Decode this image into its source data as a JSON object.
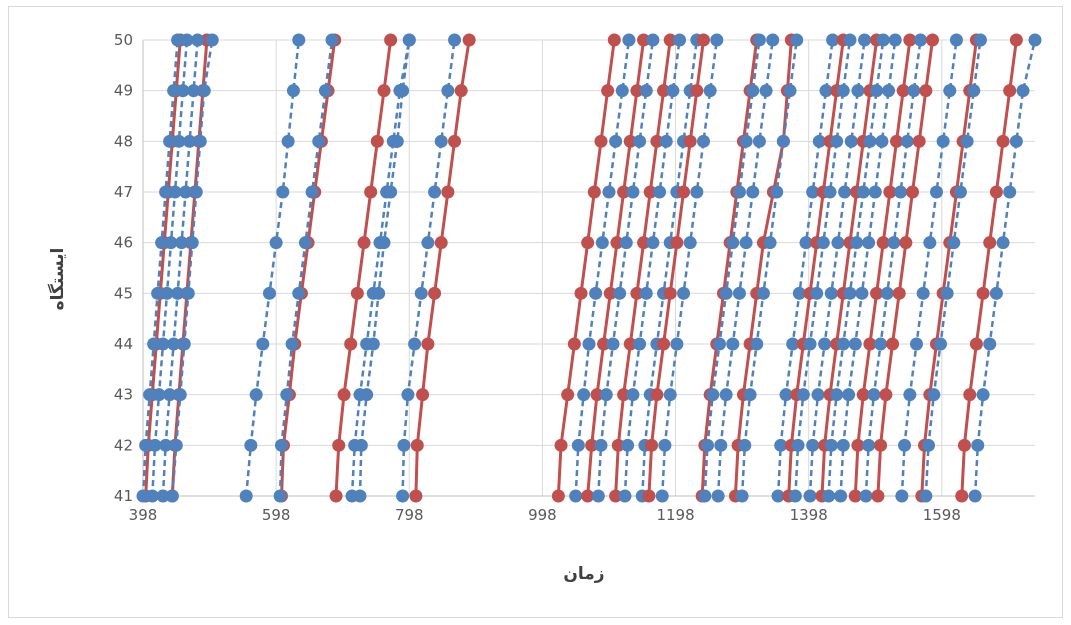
{
  "chart_data": {
    "type": "line",
    "xlabel": "زمان",
    "ylabel": "ایستگاه",
    "xlim": [
      398,
      1738
    ],
    "ylim": [
      41,
      50
    ],
    "xticks": [
      398,
      598,
      798,
      998,
      1198,
      1398,
      1598
    ],
    "yticks": [
      41,
      42,
      43,
      44,
      45,
      46,
      47,
      48,
      49,
      50
    ],
    "grid": true,
    "legend": "none",
    "colors": {
      "red": "#c0504d",
      "blue": "#4f81bd"
    },
    "series": [
      {
        "style": "solid",
        "color": "red",
        "x": [
          402,
          406,
          412,
          418,
          424,
          430,
          436,
          442,
          448,
          454
        ],
        "y": [
          41,
          42,
          43,
          44,
          45,
          46,
          47,
          48,
          49,
          50
        ]
      },
      {
        "style": "solid",
        "color": "red",
        "x": [
          442,
          446,
          452,
          458,
          464,
          470,
          476,
          482,
          488,
          494
        ],
        "y": [
          41,
          42,
          43,
          44,
          45,
          46,
          47,
          48,
          49,
          50
        ]
      },
      {
        "style": "dashed",
        "color": "blue",
        "x": [
          398,
          402,
          408,
          414,
          420,
          426,
          432,
          438,
          444,
          450
        ],
        "y": [
          41,
          42,
          43,
          44,
          45,
          46,
          47,
          48,
          49,
          50
        ]
      },
      {
        "style": "dashed",
        "color": "blue",
        "x": [
          412,
          416,
          422,
          428,
          434,
          440,
          446,
          452,
          458,
          464
        ],
        "y": [
          41,
          42,
          43,
          44,
          45,
          46,
          47,
          48,
          49,
          50
        ]
      },
      {
        "style": "dashed",
        "color": "blue",
        "x": [
          428,
          432,
          438,
          444,
          450,
          456,
          462,
          468,
          474,
          480
        ],
        "y": [
          41,
          42,
          43,
          44,
          45,
          46,
          47,
          48,
          49,
          50
        ]
      },
      {
        "style": "dashed",
        "color": "blue",
        "x": [
          442,
          448,
          454,
          460,
          466,
          472,
          478,
          484,
          490,
          502
        ],
        "y": [
          41,
          42,
          43,
          44,
          45,
          46,
          47,
          48,
          49,
          50
        ]
      },
      {
        "style": "dashed",
        "color": "blue",
        "x": [
          553,
          560,
          568,
          578,
          588,
          598,
          608,
          616,
          624,
          632
        ],
        "y": [
          41,
          42,
          43,
          44,
          45,
          46,
          47,
          48,
          49,
          50
        ]
      },
      {
        "style": "solid",
        "color": "red",
        "x": [
          606,
          609,
          618,
          626,
          636,
          646,
          656,
          666,
          676,
          686
        ],
        "y": [
          41,
          42,
          43,
          44,
          45,
          46,
          47,
          48,
          49,
          50
        ]
      },
      {
        "style": "dashed",
        "color": "blue",
        "x": [
          604,
          606,
          614,
          622,
          632,
          642,
          652,
          662,
          672,
          682
        ],
        "y": [
          41,
          42,
          43,
          44,
          45,
          46,
          47,
          48,
          49,
          50
        ]
      },
      {
        "style": "solid",
        "color": "red",
        "x": [
          688,
          692,
          700,
          710,
          720,
          730,
          740,
          750,
          760,
          770
        ],
        "y": [
          41,
          42,
          43,
          44,
          45,
          46,
          47,
          48,
          49,
          50
        ]
      },
      {
        "style": "dashed",
        "color": "blue",
        "x": [
          712,
          716,
          724,
          734,
          744,
          754,
          764,
          774,
          784,
          798
        ],
        "y": [
          41,
          42,
          43,
          44,
          45,
          46,
          47,
          48,
          49,
          50
        ]
      },
      {
        "style": "dashed",
        "color": "blue",
        "x": [
          724,
          726,
          734,
          744,
          752,
          760,
          770,
          780,
          788,
          798
        ],
        "y": [
          41,
          42,
          43,
          44,
          45,
          46,
          47,
          48,
          49,
          50
        ]
      },
      {
        "style": "solid",
        "color": "red",
        "x": [
          808,
          810,
          818,
          826,
          836,
          846,
          856,
          866,
          876,
          888
        ],
        "y": [
          41,
          42,
          43,
          44,
          45,
          46,
          47,
          48,
          49,
          50
        ]
      },
      {
        "style": "dashed",
        "color": "blue",
        "x": [
          788,
          790,
          796,
          806,
          816,
          826,
          836,
          846,
          856,
          866
        ],
        "y": [
          41,
          42,
          43,
          44,
          45,
          46,
          47,
          48,
          49,
          50
        ]
      },
      {
        "style": "solid",
        "color": "red",
        "x": [
          1022,
          1026,
          1036,
          1046,
          1056,
          1066,
          1076,
          1086,
          1096,
          1106
        ],
        "y": [
          41,
          42,
          43,
          44,
          45,
          46,
          47,
          48,
          49,
          50
        ]
      },
      {
        "style": "dashed",
        "color": "blue",
        "x": [
          1048,
          1052,
          1060,
          1068,
          1078,
          1088,
          1098,
          1108,
          1118,
          1128
        ],
        "y": [
          41,
          42,
          43,
          44,
          45,
          46,
          47,
          48,
          49,
          50
        ]
      },
      {
        "style": "solid",
        "color": "red",
        "x": [
          1066,
          1072,
          1080,
          1090,
          1100,
          1110,
          1120,
          1130,
          1140,
          1150
        ],
        "y": [
          41,
          42,
          43,
          44,
          45,
          46,
          47,
          48,
          49,
          50
        ]
      },
      {
        "style": "dashed",
        "color": "blue",
        "x": [
          1082,
          1086,
          1094,
          1104,
          1114,
          1124,
          1134,
          1144,
          1154,
          1164
        ],
        "y": [
          41,
          42,
          43,
          44,
          45,
          46,
          47,
          48,
          49,
          50
        ]
      },
      {
        "style": "solid",
        "color": "red",
        "x": [
          1108,
          1112,
          1120,
          1130,
          1140,
          1150,
          1160,
          1170,
          1180,
          1190
        ],
        "y": [
          41,
          42,
          43,
          44,
          45,
          46,
          47,
          48,
          49,
          50
        ]
      },
      {
        "style": "dashed",
        "color": "blue",
        "x": [
          1122,
          1126,
          1134,
          1144,
          1154,
          1164,
          1174,
          1184,
          1194,
          1204
        ],
        "y": [
          41,
          42,
          43,
          44,
          45,
          46,
          47,
          48,
          49,
          50
        ]
      },
      {
        "style": "dashed",
        "color": "blue",
        "x": [
          1148,
          1152,
          1160,
          1170,
          1180,
          1190,
          1200,
          1210,
          1220,
          1230
        ],
        "y": [
          41,
          42,
          43,
          44,
          45,
          46,
          47,
          48,
          49,
          50
        ]
      },
      {
        "style": "solid",
        "color": "red",
        "x": [
          1158,
          1162,
          1170,
          1180,
          1190,
          1200,
          1210,
          1220,
          1230,
          1240
        ],
        "y": [
          41,
          42,
          43,
          44,
          45,
          46,
          47,
          48,
          49,
          50
        ]
      },
      {
        "style": "dashed",
        "color": "blue",
        "x": [
          1178,
          1182,
          1190,
          1200,
          1210,
          1220,
          1230,
          1240,
          1250,
          1260
        ],
        "y": [
          41,
          42,
          43,
          44,
          45,
          46,
          47,
          48,
          49,
          50
        ]
      },
      {
        "style": "solid",
        "color": "red",
        "x": [
          1238,
          1242,
          1250,
          1260,
          1270,
          1280,
          1290,
          1300,
          1310,
          1320
        ],
        "y": [
          41,
          42,
          43,
          44,
          45,
          46,
          47,
          48,
          49,
          50
        ]
      },
      {
        "style": "dashed",
        "color": "blue",
        "x": [
          1242,
          1246,
          1254,
          1264,
          1274,
          1284,
          1294,
          1304,
          1314,
          1324
        ],
        "y": [
          41,
          42,
          43,
          44,
          45,
          46,
          47,
          48,
          49,
          50
        ]
      },
      {
        "style": "dashed",
        "color": "blue",
        "x": [
          1262,
          1266,
          1274,
          1284,
          1294,
          1304,
          1314,
          1324,
          1334,
          1344
        ],
        "y": [
          41,
          42,
          43,
          44,
          45,
          46,
          47,
          48,
          49,
          50
        ]
      },
      {
        "style": "solid",
        "color": "red",
        "x": [
          1288,
          1292,
          1300,
          1310,
          1320,
          1330,
          1345,
          1360,
          1366,
          1372
        ],
        "y": [
          41,
          42,
          43,
          44,
          45,
          46,
          47,
          48,
          49,
          50
        ]
      },
      {
        "style": "dashed",
        "color": "blue",
        "x": [
          1298,
          1302,
          1310,
          1320,
          1330,
          1340,
          1350,
          1360,
          1370,
          1380
        ],
        "y": [
          41,
          42,
          43,
          44,
          45,
          46,
          47,
          48,
          49,
          50
        ]
      },
      {
        "style": "dashed",
        "color": "blue",
        "x": [
          1352,
          1356,
          1364,
          1374,
          1384,
          1394,
          1404,
          1414,
          1424,
          1434
        ],
        "y": [
          41,
          42,
          43,
          44,
          45,
          46,
          47,
          48,
          49,
          50
        ]
      },
      {
        "style": "solid",
        "color": "red",
        "x": [
          1368,
          1372,
          1380,
          1390,
          1400,
          1410,
          1420,
          1430,
          1440,
          1450
        ],
        "y": [
          41,
          42,
          43,
          44,
          45,
          46,
          47,
          48,
          49,
          50
        ]
      },
      {
        "style": "dashed",
        "color": "blue",
        "x": [
          1378,
          1382,
          1390,
          1400,
          1410,
          1420,
          1430,
          1440,
          1450,
          1460
        ],
        "y": [
          41,
          42,
          43,
          44,
          45,
          46,
          47,
          48,
          49,
          50
        ]
      },
      {
        "style": "dashed",
        "color": "blue",
        "x": [
          1400,
          1404,
          1412,
          1422,
          1432,
          1442,
          1452,
          1462,
          1472,
          1482
        ],
        "y": [
          41,
          42,
          43,
          44,
          45,
          46,
          47,
          48,
          49,
          50
        ]
      },
      {
        "style": "solid",
        "color": "red",
        "x": [
          1418,
          1422,
          1430,
          1440,
          1450,
          1460,
          1470,
          1480,
          1490,
          1500
        ],
        "y": [
          41,
          42,
          43,
          44,
          45,
          46,
          47,
          48,
          49,
          50
        ]
      },
      {
        "style": "dashed",
        "color": "blue",
        "x": [
          1428,
          1432,
          1440,
          1450,
          1460,
          1470,
          1480,
          1490,
          1500,
          1510
        ],
        "y": [
          41,
          42,
          43,
          44,
          45,
          46,
          47,
          48,
          49,
          50
        ]
      },
      {
        "style": "dashed",
        "color": "blue",
        "x": [
          1446,
          1450,
          1458,
          1468,
          1478,
          1488,
          1498,
          1508,
          1518,
          1528
        ],
        "y": [
          41,
          42,
          43,
          44,
          45,
          46,
          47,
          48,
          49,
          50
        ]
      },
      {
        "style": "solid",
        "color": "red",
        "x": [
          1468,
          1472,
          1480,
          1490,
          1500,
          1510,
          1520,
          1530,
          1540,
          1550
        ],
        "y": [
          41,
          42,
          43,
          44,
          45,
          46,
          47,
          48,
          49,
          50
        ]
      },
      {
        "style": "dashed",
        "color": "blue",
        "x": [
          1484,
          1488,
          1496,
          1506,
          1516,
          1526,
          1536,
          1546,
          1556,
          1566
        ],
        "y": [
          41,
          42,
          43,
          44,
          45,
          46,
          47,
          48,
          49,
          50
        ]
      },
      {
        "style": "solid",
        "color": "red",
        "x": [
          1502,
          1506,
          1514,
          1524,
          1534,
          1544,
          1554,
          1564,
          1574,
          1584
        ],
        "y": [
          41,
          42,
          43,
          44,
          45,
          46,
          47,
          48,
          49,
          50
        ]
      },
      {
        "style": "dashed",
        "color": "blue",
        "x": [
          1538,
          1542,
          1550,
          1560,
          1570,
          1580,
          1590,
          1600,
          1610,
          1620
        ],
        "y": [
          41,
          42,
          43,
          44,
          45,
          46,
          47,
          48,
          49,
          50
        ]
      },
      {
        "style": "solid",
        "color": "red",
        "x": [
          1568,
          1572,
          1580,
          1590,
          1600,
          1610,
          1620,
          1630,
          1640,
          1650
        ],
        "y": [
          41,
          42,
          43,
          44,
          45,
          46,
          47,
          48,
          49,
          50
        ]
      },
      {
        "style": "dashed",
        "color": "blue",
        "x": [
          1574,
          1578,
          1586,
          1596,
          1606,
          1616,
          1626,
          1636,
          1646,
          1656
        ],
        "y": [
          41,
          42,
          43,
          44,
          45,
          46,
          47,
          48,
          49,
          50
        ]
      },
      {
        "style": "solid",
        "color": "red",
        "x": [
          1628,
          1632,
          1640,
          1650,
          1660,
          1670,
          1680,
          1690,
          1700,
          1710
        ],
        "y": [
          41,
          42,
          43,
          44,
          45,
          46,
          47,
          48,
          49,
          50
        ]
      },
      {
        "style": "dashed",
        "color": "blue",
        "x": [
          1648,
          1652,
          1660,
          1670,
          1680,
          1690,
          1700,
          1710,
          1720,
          1738
        ],
        "y": [
          41,
          42,
          43,
          44,
          45,
          46,
          47,
          48,
          49,
          50
        ]
      }
    ]
  }
}
